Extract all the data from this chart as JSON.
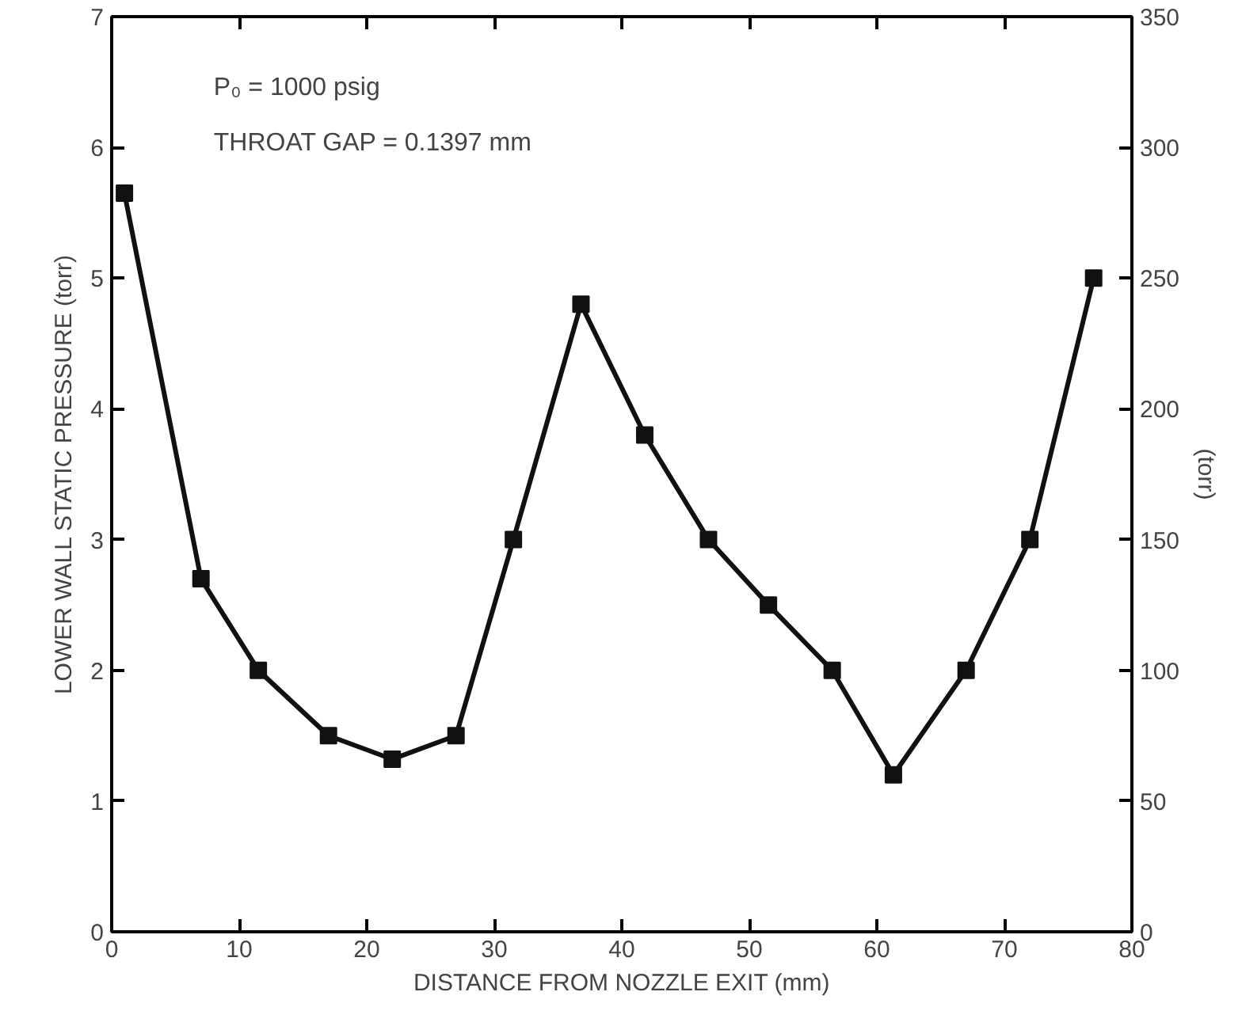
{
  "chart_data": {
    "type": "line",
    "xlabel": "DISTANCE FROM NOZZLE EXIT (mm)",
    "ylabel": "LOWER WALL STATIC PRESSURE (torr)",
    "y2label": "(torr)",
    "annotations": [
      "P₀ = 1000 psig",
      "THROAT GAP = 0.1397 mm"
    ],
    "x": [
      1,
      7,
      11.5,
      17,
      22,
      27,
      31.5,
      36.8,
      41.8,
      46.8,
      51.5,
      56.5,
      61.3,
      67,
      72,
      77
    ],
    "series": [
      {
        "color": "#111111",
        "values": [
          5.65,
          2.7,
          2.0,
          1.5,
          1.32,
          1.5,
          3.0,
          4.8,
          3.8,
          3.0,
          2.5,
          2.0,
          1.2,
          2.0,
          3.0,
          5.0
        ]
      }
    ],
    "xlim": [
      0,
      80
    ],
    "xticks": [
      0,
      10,
      20,
      30,
      40,
      50,
      60,
      70,
      80
    ],
    "ylim": [
      0,
      7
    ],
    "yticks": [
      0,
      1,
      2,
      3,
      4,
      5,
      6,
      7
    ],
    "y2lim": [
      0,
      350
    ],
    "y2ticks": [
      0,
      50,
      100,
      150,
      200,
      250,
      300,
      350
    ],
    "marker": "square",
    "line_style": "solid",
    "grid": false
  }
}
